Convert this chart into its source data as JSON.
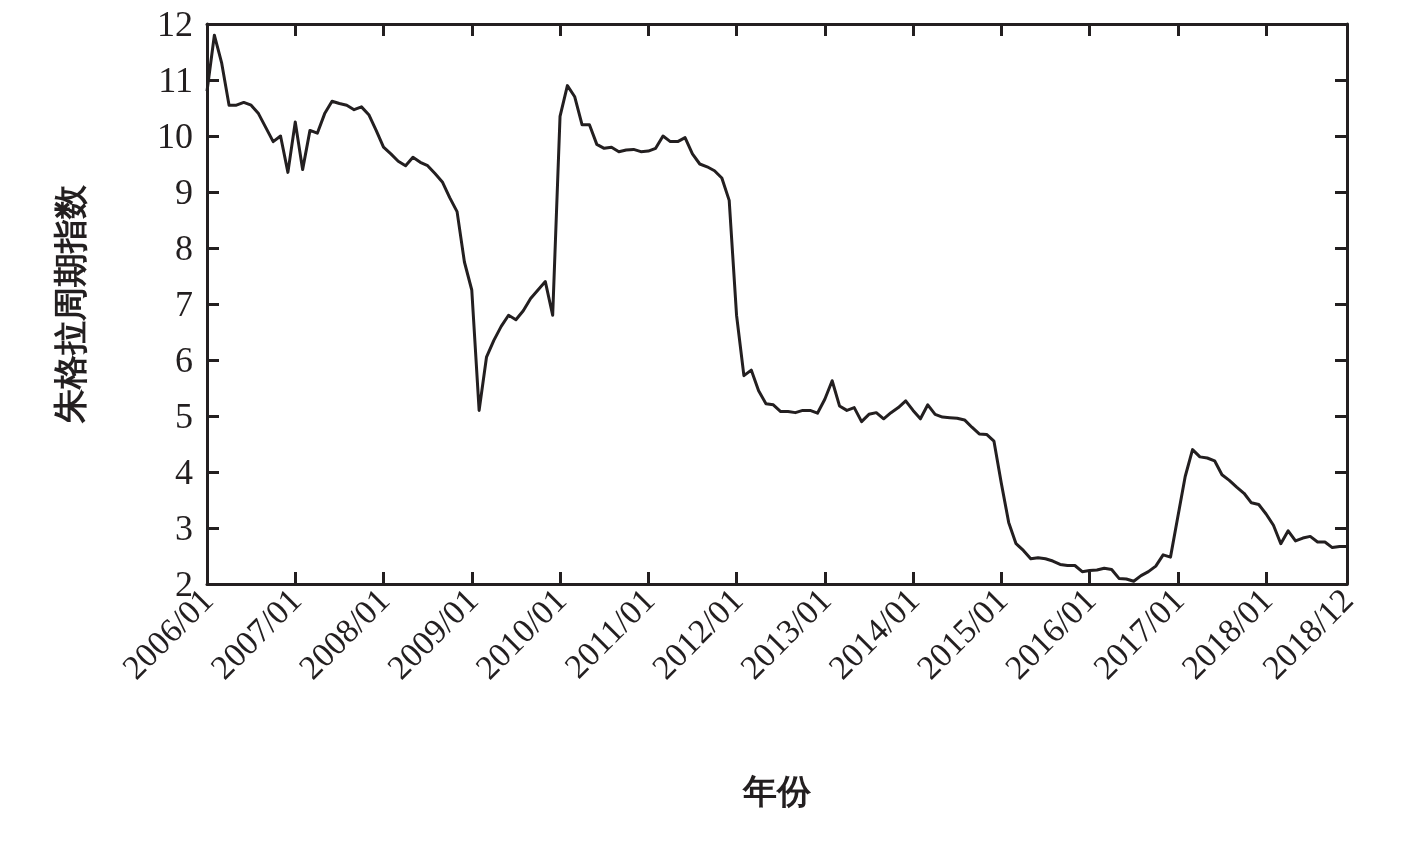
{
  "chart_data": {
    "type": "line",
    "xlabel": "年份",
    "ylabel": "朱格拉周期指数",
    "categories": [
      "2006/01",
      null,
      null,
      null,
      null,
      null,
      null,
      null,
      null,
      null,
      null,
      null,
      "2007/01",
      null,
      null,
      null,
      null,
      null,
      null,
      null,
      null,
      null,
      null,
      null,
      "2008/01",
      null,
      null,
      null,
      null,
      null,
      null,
      null,
      null,
      null,
      null,
      null,
      "2009/01",
      null,
      null,
      null,
      null,
      null,
      null,
      null,
      null,
      null,
      null,
      null,
      "2010/01",
      null,
      null,
      null,
      null,
      null,
      null,
      null,
      null,
      null,
      null,
      null,
      "2011/01",
      null,
      null,
      null,
      null,
      null,
      null,
      null,
      null,
      null,
      null,
      null,
      "2012/01",
      null,
      null,
      null,
      null,
      null,
      null,
      null,
      null,
      null,
      null,
      null,
      "2013/01",
      null,
      null,
      null,
      null,
      null,
      null,
      null,
      null,
      null,
      null,
      null,
      "2014/01",
      null,
      null,
      null,
      null,
      null,
      null,
      null,
      null,
      null,
      null,
      null,
      "2015/01",
      null,
      null,
      null,
      null,
      null,
      null,
      null,
      null,
      null,
      null,
      null,
      "2016/01",
      null,
      null,
      null,
      null,
      null,
      null,
      null,
      null,
      null,
      null,
      null,
      "2017/01",
      null,
      null,
      null,
      null,
      null,
      null,
      null,
      null,
      null,
      null,
      null,
      "2018/01",
      null,
      null,
      null,
      null,
      null,
      null,
      null,
      null,
      null,
      null,
      "2018/12"
    ],
    "values": [
      10.8,
      11.8,
      11.3,
      10.55,
      10.55,
      10.6,
      10.55,
      10.4,
      10.15,
      9.9,
      10.0,
      9.35,
      10.25,
      9.4,
      10.1,
      10.05,
      10.4,
      10.62,
      10.58,
      10.55,
      10.47,
      10.52,
      10.38,
      10.1,
      9.8,
      9.68,
      9.55,
      9.47,
      9.62,
      9.53,
      9.47,
      9.33,
      9.18,
      8.9,
      8.65,
      7.75,
      7.25,
      5.1,
      6.05,
      6.35,
      6.6,
      6.8,
      6.72,
      6.88,
      7.1,
      7.25,
      7.4,
      6.8,
      10.35,
      10.9,
      10.7,
      10.2,
      10.2,
      9.85,
      9.78,
      9.8,
      9.72,
      9.75,
      9.76,
      9.72,
      9.73,
      9.78,
      10.0,
      9.9,
      9.9,
      9.97,
      9.68,
      9.5,
      9.45,
      9.38,
      9.25,
      8.85,
      6.8,
      5.72,
      5.82,
      5.45,
      5.22,
      5.2,
      5.08,
      5.08,
      5.06,
      5.1,
      5.1,
      5.05,
      5.3,
      5.63,
      5.18,
      5.1,
      5.15,
      4.9,
      5.03,
      5.06,
      4.95,
      5.06,
      5.15,
      5.27,
      5.1,
      4.95,
      5.2,
      5.03,
      4.98,
      4.97,
      4.96,
      4.93,
      4.8,
      4.68,
      4.67,
      4.55,
      3.8,
      3.1,
      2.72,
      2.6,
      2.45,
      2.47,
      2.45,
      2.41,
      2.35,
      2.33,
      2.33,
      2.22,
      2.24,
      2.25,
      2.28,
      2.26,
      2.1,
      2.09,
      2.05,
      2.15,
      2.22,
      2.32,
      2.52,
      2.48,
      3.2,
      3.92,
      4.4,
      4.27,
      4.25,
      4.2,
      3.95,
      3.85,
      3.73,
      3.62,
      3.45,
      3.42,
      3.25,
      3.05,
      2.72,
      2.95,
      2.77,
      2.82,
      2.85,
      2.75,
      2.75,
      2.65,
      2.67,
      2.67
    ],
    "color": "#231f20",
    "marker": "none",
    "ylim": [
      2,
      12
    ],
    "yticks": [
      2,
      3,
      4,
      5,
      6,
      7,
      8,
      9,
      10,
      11,
      12
    ]
  }
}
